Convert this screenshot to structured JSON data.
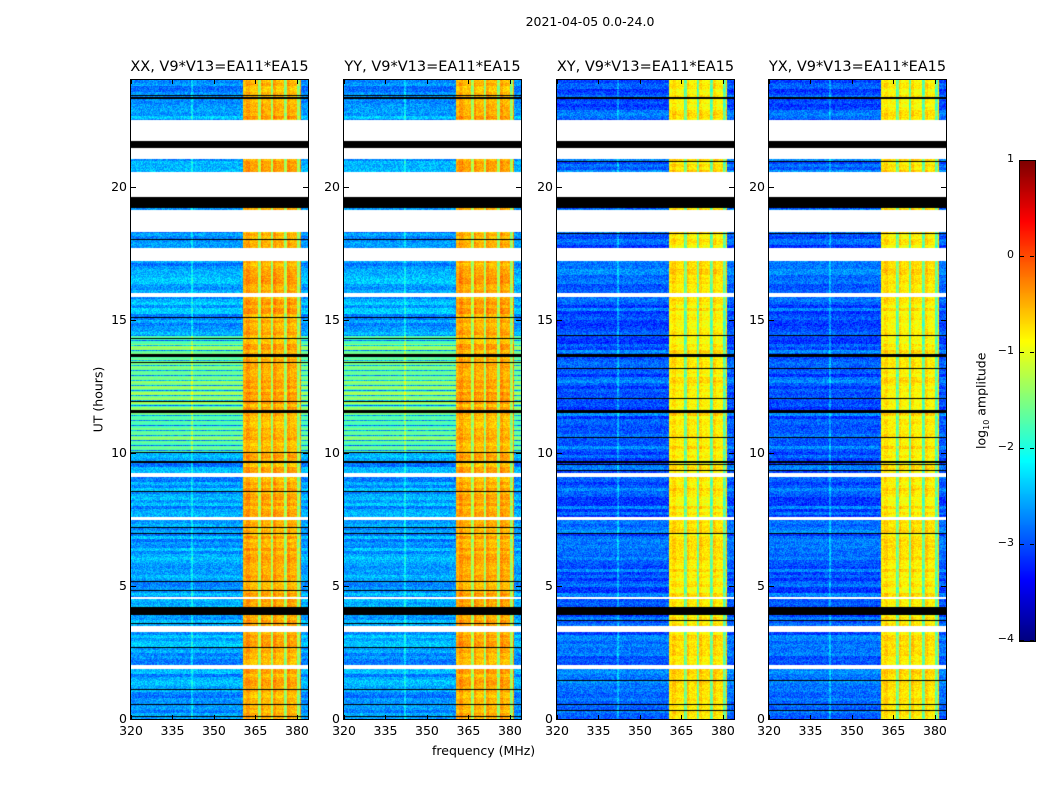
{
  "chart_data": {
    "type": "heatmap",
    "suptitle": "2021-04-05 0.0-24.0",
    "xlabel": "frequency (MHz)",
    "ylabel": "UT (hours)",
    "xlim": [
      320,
      384
    ],
    "ylim": [
      0,
      24
    ],
    "xticks": [
      "320",
      "335",
      "350",
      "365",
      "380"
    ],
    "xtick_values": [
      320,
      335,
      350,
      365,
      380
    ],
    "yticks": [
      "0",
      "5",
      "10",
      "15",
      "20"
    ],
    "ytick_values": [
      0,
      5,
      10,
      15,
      20
    ],
    "panels": [
      {
        "title": "XX, V9*V13=EA11*EA15",
        "pol": "parallel",
        "background_log_amp": -2.6,
        "band_log_amp": -0.5
      },
      {
        "title": "YY, V9*V13=EA11*EA15",
        "pol": "parallel",
        "background_log_amp": -2.6,
        "band_log_amp": -0.5
      },
      {
        "title": "XY, V9*V13=EA11*EA15",
        "pol": "cross",
        "background_log_amp": -2.9,
        "band_log_amp": -0.8
      },
      {
        "title": "YX, V9*V13=EA11*EA15",
        "pol": "cross",
        "background_log_amp": -2.9,
        "band_log_amp": -0.8
      }
    ],
    "rfi_band_mhz": [
      360.5,
      381.5
    ],
    "flagged_ut_ranges": [
      [
        21.7,
        22.5
      ],
      [
        21.05,
        21.45
      ],
      [
        19.6,
        20.55
      ],
      [
        18.3,
        19.1
      ],
      [
        17.2,
        17.7
      ],
      [
        15.85,
        16.0
      ],
      [
        9.08,
        9.23
      ],
      [
        7.47,
        7.6
      ],
      [
        3.26,
        3.5
      ],
      [
        1.88,
        2.03
      ],
      [
        4.5,
        4.58
      ]
    ],
    "black_ut_ranges": [
      [
        21.45,
        21.7
      ],
      [
        19.2,
        19.6
      ],
      [
        3.9,
        4.2
      ],
      [
        23.3,
        23.35
      ],
      [
        13.6,
        13.7
      ],
      [
        11.5,
        11.6
      ],
      [
        9.6,
        9.7
      ]
    ],
    "colorbar": {
      "label_main": "log",
      "label_sub": "10",
      "label_rest": " amplitude",
      "range": [
        -4,
        1
      ],
      "ticks": [
        "1",
        "0",
        "−1",
        "−2",
        "−3",
        "−4"
      ],
      "tick_values": [
        1,
        0,
        -1,
        -2,
        -3,
        -4
      ],
      "colormap": "jet"
    }
  }
}
